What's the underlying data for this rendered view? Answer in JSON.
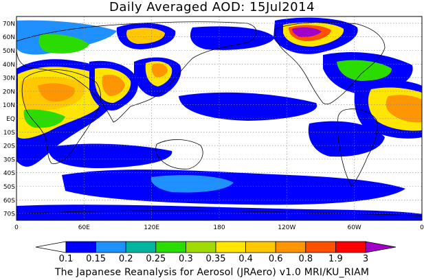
{
  "title": "Daily Averaged AOD: 15Jul2014",
  "credit": "The Japanese Reanalysis for Aerosol (JRAero) v1.0 MRI/KU_RIAM",
  "lat_labels": [
    "70N",
    "60N",
    "50N",
    "40N",
    "30N",
    "20N",
    "10N",
    "EQ",
    "10S",
    "20S",
    "30S",
    "40S",
    "50S",
    "60S",
    "70S"
  ],
  "lon_labels": [
    "0",
    "60E",
    "120E",
    "180",
    "120W",
    "60W",
    "0"
  ],
  "colorbar": {
    "labels": [
      "0.1",
      "0.15",
      "0.2",
      "0.25",
      "0.3",
      "0.35",
      "0.4",
      "0.6",
      "0.8",
      "1.9",
      "3"
    ],
    "colors": [
      "#ffffff",
      "#0000ff",
      "#1e90ff",
      "#00b4a0",
      "#2adc00",
      "#a0dc00",
      "#ffe600",
      "#ffc800",
      "#ff9600",
      "#ff5000",
      "#ff0000",
      "#a000c8"
    ]
  },
  "chart_data": {
    "type": "heatmap",
    "title": "Daily Averaged AOD: 15Jul2014",
    "variable": "AOD",
    "date": "15Jul2014",
    "lon_range": [
      0,
      360
    ],
    "lat_range": [
      -75,
      75
    ],
    "x_ticks": [
      "0",
      "60E",
      "120E",
      "180",
      "120W",
      "60W",
      "0"
    ],
    "y_ticks": [
      "70N",
      "60N",
      "50N",
      "40N",
      "30N",
      "20N",
      "10N",
      "EQ",
      "10S",
      "20S",
      "30S",
      "40S",
      "50S",
      "60S",
      "70S"
    ],
    "levels": [
      0.1,
      0.15,
      0.2,
      0.25,
      0.3,
      0.35,
      0.4,
      0.6,
      0.8,
      1.9,
      3
    ],
    "grid": true
  }
}
